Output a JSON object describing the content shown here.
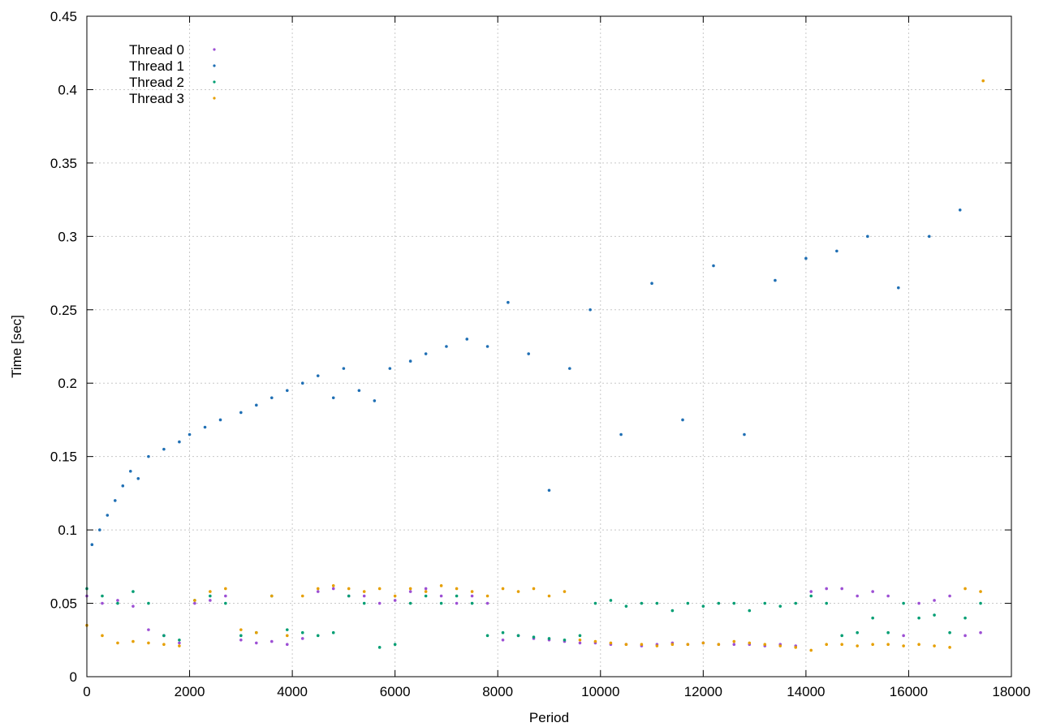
{
  "chart_data": {
    "type": "scatter",
    "title": "",
    "xlabel": "Period",
    "ylabel": "Time [sec]",
    "xlim": [
      0,
      18000
    ],
    "ylim": [
      0,
      0.45
    ],
    "xticks": [
      0,
      2000,
      4000,
      6000,
      8000,
      10000,
      12000,
      14000,
      16000,
      18000
    ],
    "yticks": [
      0,
      0.05,
      0.1,
      0.15,
      0.2,
      0.25,
      0.3,
      0.35,
      0.4,
      0.45
    ],
    "xtick_labels": [
      "0",
      "2000",
      "4000",
      "6000",
      "8000",
      "10000",
      "12000",
      "14000",
      "16000",
      "18000"
    ],
    "ytick_labels": [
      "0",
      "0.05",
      "0.1",
      "0.15",
      "0.2",
      "0.25",
      "0.3",
      "0.35",
      "0.4",
      "0.45"
    ],
    "grid": true,
    "legend_position": "top-left",
    "series": [
      {
        "name": "Thread 0",
        "color": "#9d4fd4",
        "x": [
          0,
          300,
          600,
          900,
          1200,
          1500,
          1800,
          2100,
          2400,
          2700,
          3000,
          3300,
          3600,
          3900,
          4200,
          4500,
          4800,
          5100,
          5400,
          5700,
          6000,
          6300,
          6600,
          6900,
          7200,
          7500,
          7800,
          8100,
          8400,
          8700,
          9000,
          9300,
          9600,
          9900,
          10200,
          10500,
          10800,
          11100,
          11400,
          11700,
          12000,
          12300,
          12600,
          12900,
          13200,
          13500,
          13800,
          14100,
          14400,
          14700,
          15000,
          15300,
          15600,
          15900,
          16200,
          16500,
          16800,
          17100,
          17400
        ],
        "y": [
          0.055,
          0.05,
          0.052,
          0.048,
          0.032,
          0.028,
          0.023,
          0.05,
          0.052,
          0.055,
          0.025,
          0.023,
          0.024,
          0.022,
          0.026,
          0.058,
          0.06,
          0.055,
          0.055,
          0.05,
          0.052,
          0.058,
          0.06,
          0.055,
          0.05,
          0.055,
          0.05,
          0.025,
          0.028,
          0.026,
          0.025,
          0.024,
          0.023,
          0.023,
          0.022,
          0.022,
          0.021,
          0.022,
          0.023,
          0.022,
          0.023,
          0.022,
          0.022,
          0.022,
          0.021,
          0.022,
          0.021,
          0.058,
          0.06,
          0.06,
          0.055,
          0.058,
          0.055,
          0.028,
          0.05,
          0.052,
          0.055,
          0.028,
          0.03
        ]
      },
      {
        "name": "Thread 1",
        "color": "#1f6fb4",
        "x": [
          100,
          250,
          400,
          550,
          700,
          850,
          1000,
          1200,
          1500,
          1800,
          2000,
          2300,
          2600,
          3000,
          3300,
          3600,
          3900,
          4200,
          4500,
          4800,
          5000,
          5300,
          5600,
          5900,
          6300,
          6600,
          7000,
          7400,
          7800,
          8200,
          8600,
          9000,
          9400,
          9800,
          10400,
          11000,
          11600,
          12200,
          12800,
          13400,
          14000,
          14600,
          15200,
          15800,
          16400,
          17000
        ],
        "y": [
          0.09,
          0.1,
          0.11,
          0.12,
          0.13,
          0.14,
          0.135,
          0.15,
          0.155,
          0.16,
          0.165,
          0.17,
          0.175,
          0.18,
          0.185,
          0.19,
          0.195,
          0.2,
          0.205,
          0.19,
          0.21,
          0.195,
          0.188,
          0.21,
          0.215,
          0.22,
          0.225,
          0.23,
          0.225,
          0.255,
          0.22,
          0.127,
          0.21,
          0.25,
          0.165,
          0.268,
          0.175,
          0.28,
          0.165,
          0.27,
          0.285,
          0.29,
          0.3,
          0.265,
          0.3,
          0.318
        ]
      },
      {
        "name": "Thread 2",
        "color": "#009e73",
        "x": [
          0,
          300,
          600,
          900,
          1200,
          1500,
          1800,
          2100,
          2400,
          2700,
          3000,
          3300,
          3600,
          3900,
          4200,
          4500,
          4800,
          5100,
          5400,
          5700,
          6000,
          6300,
          6600,
          6900,
          7200,
          7500,
          7800,
          8100,
          8400,
          8700,
          9000,
          9300,
          9600,
          9900,
          10200,
          10500,
          10800,
          11100,
          11400,
          11700,
          12000,
          12300,
          12600,
          12900,
          13200,
          13500,
          13800,
          14100,
          14400,
          14700,
          15000,
          15300,
          15600,
          15900,
          16200,
          16500,
          16800,
          17100,
          17400
        ],
        "y": [
          0.06,
          0.055,
          0.05,
          0.058,
          0.05,
          0.028,
          0.025,
          0.052,
          0.055,
          0.05,
          0.028,
          0.03,
          0.055,
          0.032,
          0.03,
          0.028,
          0.03,
          0.055,
          0.05,
          0.02,
          0.022,
          0.05,
          0.055,
          0.05,
          0.055,
          0.05,
          0.028,
          0.03,
          0.028,
          0.027,
          0.026,
          0.025,
          0.028,
          0.05,
          0.052,
          0.048,
          0.05,
          0.05,
          0.045,
          0.05,
          0.048,
          0.05,
          0.05,
          0.045,
          0.05,
          0.048,
          0.05,
          0.055,
          0.05,
          0.028,
          0.03,
          0.04,
          0.03,
          0.05,
          0.04,
          0.042,
          0.03,
          0.04,
          0.05
        ]
      },
      {
        "name": "Thread 3",
        "color": "#e69f00",
        "x": [
          0,
          300,
          600,
          900,
          1200,
          1500,
          1800,
          2100,
          2400,
          2700,
          3000,
          3300,
          3600,
          3900,
          4200,
          4500,
          4800,
          5100,
          5400,
          5700,
          6000,
          6300,
          6600,
          6900,
          7200,
          7500,
          7800,
          8100,
          8400,
          8700,
          9000,
          9300,
          9600,
          9900,
          10200,
          10500,
          10800,
          11100,
          11400,
          11700,
          12000,
          12300,
          12600,
          12900,
          13200,
          13500,
          13800,
          14100,
          14400,
          14700,
          15000,
          15300,
          15600,
          15900,
          16200,
          16500,
          16800,
          17100,
          17400,
          17450
        ],
        "y": [
          0.035,
          0.028,
          0.023,
          0.024,
          0.023,
          0.022,
          0.021,
          0.052,
          0.058,
          0.06,
          0.032,
          0.03,
          0.055,
          0.028,
          0.055,
          0.06,
          0.062,
          0.06,
          0.058,
          0.06,
          0.055,
          0.06,
          0.058,
          0.062,
          0.06,
          0.058,
          0.055,
          0.06,
          0.058,
          0.06,
          0.055,
          0.058,
          0.025,
          0.024,
          0.023,
          0.022,
          0.022,
          0.021,
          0.022,
          0.022,
          0.023,
          0.022,
          0.024,
          0.023,
          0.022,
          0.021,
          0.02,
          0.018,
          0.022,
          0.022,
          0.021,
          0.022,
          0.022,
          0.021,
          0.022,
          0.021,
          0.02,
          0.06,
          0.058,
          0.406
        ]
      }
    ]
  }
}
